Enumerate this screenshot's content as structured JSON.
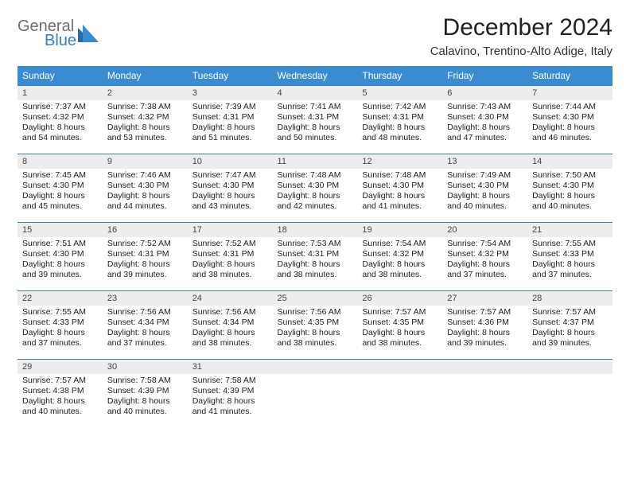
{
  "logo": {
    "general": "General",
    "blue": "Blue"
  },
  "title": "December 2024",
  "location": "Calavino, Trentino-Alto Adige, Italy",
  "colors": {
    "header_bg": "#3a8bd0",
    "header_text": "#ffffff",
    "border": "#3a7fbf",
    "daynum_bg": "#ededed",
    "logo_gray": "#6e6e6e",
    "logo_blue": "#3a7fbf"
  },
  "weekdays": [
    "Sunday",
    "Monday",
    "Tuesday",
    "Wednesday",
    "Thursday",
    "Friday",
    "Saturday"
  ],
  "weeks": [
    [
      {
        "n": "1",
        "sr": "Sunrise: 7:37 AM",
        "ss": "Sunset: 4:32 PM",
        "d1": "Daylight: 8 hours",
        "d2": "and 54 minutes."
      },
      {
        "n": "2",
        "sr": "Sunrise: 7:38 AM",
        "ss": "Sunset: 4:32 PM",
        "d1": "Daylight: 8 hours",
        "d2": "and 53 minutes."
      },
      {
        "n": "3",
        "sr": "Sunrise: 7:39 AM",
        "ss": "Sunset: 4:31 PM",
        "d1": "Daylight: 8 hours",
        "d2": "and 51 minutes."
      },
      {
        "n": "4",
        "sr": "Sunrise: 7:41 AM",
        "ss": "Sunset: 4:31 PM",
        "d1": "Daylight: 8 hours",
        "d2": "and 50 minutes."
      },
      {
        "n": "5",
        "sr": "Sunrise: 7:42 AM",
        "ss": "Sunset: 4:31 PM",
        "d1": "Daylight: 8 hours",
        "d2": "and 48 minutes."
      },
      {
        "n": "6",
        "sr": "Sunrise: 7:43 AM",
        "ss": "Sunset: 4:30 PM",
        "d1": "Daylight: 8 hours",
        "d2": "and 47 minutes."
      },
      {
        "n": "7",
        "sr": "Sunrise: 7:44 AM",
        "ss": "Sunset: 4:30 PM",
        "d1": "Daylight: 8 hours",
        "d2": "and 46 minutes."
      }
    ],
    [
      {
        "n": "8",
        "sr": "Sunrise: 7:45 AM",
        "ss": "Sunset: 4:30 PM",
        "d1": "Daylight: 8 hours",
        "d2": "and 45 minutes."
      },
      {
        "n": "9",
        "sr": "Sunrise: 7:46 AM",
        "ss": "Sunset: 4:30 PM",
        "d1": "Daylight: 8 hours",
        "d2": "and 44 minutes."
      },
      {
        "n": "10",
        "sr": "Sunrise: 7:47 AM",
        "ss": "Sunset: 4:30 PM",
        "d1": "Daylight: 8 hours",
        "d2": "and 43 minutes."
      },
      {
        "n": "11",
        "sr": "Sunrise: 7:48 AM",
        "ss": "Sunset: 4:30 PM",
        "d1": "Daylight: 8 hours",
        "d2": "and 42 minutes."
      },
      {
        "n": "12",
        "sr": "Sunrise: 7:48 AM",
        "ss": "Sunset: 4:30 PM",
        "d1": "Daylight: 8 hours",
        "d2": "and 41 minutes."
      },
      {
        "n": "13",
        "sr": "Sunrise: 7:49 AM",
        "ss": "Sunset: 4:30 PM",
        "d1": "Daylight: 8 hours",
        "d2": "and 40 minutes."
      },
      {
        "n": "14",
        "sr": "Sunrise: 7:50 AM",
        "ss": "Sunset: 4:30 PM",
        "d1": "Daylight: 8 hours",
        "d2": "and 40 minutes."
      }
    ],
    [
      {
        "n": "15",
        "sr": "Sunrise: 7:51 AM",
        "ss": "Sunset: 4:30 PM",
        "d1": "Daylight: 8 hours",
        "d2": "and 39 minutes."
      },
      {
        "n": "16",
        "sr": "Sunrise: 7:52 AM",
        "ss": "Sunset: 4:31 PM",
        "d1": "Daylight: 8 hours",
        "d2": "and 39 minutes."
      },
      {
        "n": "17",
        "sr": "Sunrise: 7:52 AM",
        "ss": "Sunset: 4:31 PM",
        "d1": "Daylight: 8 hours",
        "d2": "and 38 minutes."
      },
      {
        "n": "18",
        "sr": "Sunrise: 7:53 AM",
        "ss": "Sunset: 4:31 PM",
        "d1": "Daylight: 8 hours",
        "d2": "and 38 minutes."
      },
      {
        "n": "19",
        "sr": "Sunrise: 7:54 AM",
        "ss": "Sunset: 4:32 PM",
        "d1": "Daylight: 8 hours",
        "d2": "and 38 minutes."
      },
      {
        "n": "20",
        "sr": "Sunrise: 7:54 AM",
        "ss": "Sunset: 4:32 PM",
        "d1": "Daylight: 8 hours",
        "d2": "and 37 minutes."
      },
      {
        "n": "21",
        "sr": "Sunrise: 7:55 AM",
        "ss": "Sunset: 4:33 PM",
        "d1": "Daylight: 8 hours",
        "d2": "and 37 minutes."
      }
    ],
    [
      {
        "n": "22",
        "sr": "Sunrise: 7:55 AM",
        "ss": "Sunset: 4:33 PM",
        "d1": "Daylight: 8 hours",
        "d2": "and 37 minutes."
      },
      {
        "n": "23",
        "sr": "Sunrise: 7:56 AM",
        "ss": "Sunset: 4:34 PM",
        "d1": "Daylight: 8 hours",
        "d2": "and 37 minutes."
      },
      {
        "n": "24",
        "sr": "Sunrise: 7:56 AM",
        "ss": "Sunset: 4:34 PM",
        "d1": "Daylight: 8 hours",
        "d2": "and 38 minutes."
      },
      {
        "n": "25",
        "sr": "Sunrise: 7:56 AM",
        "ss": "Sunset: 4:35 PM",
        "d1": "Daylight: 8 hours",
        "d2": "and 38 minutes."
      },
      {
        "n": "26",
        "sr": "Sunrise: 7:57 AM",
        "ss": "Sunset: 4:35 PM",
        "d1": "Daylight: 8 hours",
        "d2": "and 38 minutes."
      },
      {
        "n": "27",
        "sr": "Sunrise: 7:57 AM",
        "ss": "Sunset: 4:36 PM",
        "d1": "Daylight: 8 hours",
        "d2": "and 39 minutes."
      },
      {
        "n": "28",
        "sr": "Sunrise: 7:57 AM",
        "ss": "Sunset: 4:37 PM",
        "d1": "Daylight: 8 hours",
        "d2": "and 39 minutes."
      }
    ],
    [
      {
        "n": "29",
        "sr": "Sunrise: 7:57 AM",
        "ss": "Sunset: 4:38 PM",
        "d1": "Daylight: 8 hours",
        "d2": "and 40 minutes."
      },
      {
        "n": "30",
        "sr": "Sunrise: 7:58 AM",
        "ss": "Sunset: 4:39 PM",
        "d1": "Daylight: 8 hours",
        "d2": "and 40 minutes."
      },
      {
        "n": "31",
        "sr": "Sunrise: 7:58 AM",
        "ss": "Sunset: 4:39 PM",
        "d1": "Daylight: 8 hours",
        "d2": "and 41 minutes."
      },
      {
        "empty": true
      },
      {
        "empty": true
      },
      {
        "empty": true
      },
      {
        "empty": true
      }
    ]
  ]
}
